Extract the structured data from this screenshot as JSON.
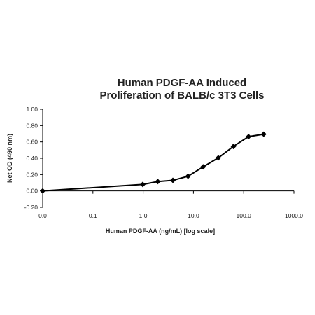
{
  "chart_data": {
    "type": "line",
    "title_lines": [
      "Human PDGF-AA Induced",
      "Proliferation of BALB/c 3T3 Cells"
    ],
    "xlabel": "Human PDGF-AA (ng/mL) [log scale]",
    "ylabel": "Net OD (490 nm)",
    "x_scale": "log",
    "x_ticks": [
      "0.0",
      "0.1",
      "1.0",
      "10.0",
      "100.0",
      "1000.0"
    ],
    "y_ticks": [
      "-0.20",
      "0.00",
      "0.20",
      "0.40",
      "0.60",
      "0.80",
      "1.00"
    ],
    "ylim": [
      -0.2,
      1.0
    ],
    "grid": false,
    "series": [
      {
        "marker": "diamond",
        "color": "#000000",
        "x": [
          0.01,
          0.98,
          1.95,
          3.9,
          7.8,
          15.6,
          31.25,
          62.5,
          125,
          250
        ],
        "y": [
          0.0,
          0.08,
          0.115,
          0.13,
          0.18,
          0.295,
          0.405,
          0.545,
          0.665,
          0.695
        ]
      }
    ]
  }
}
